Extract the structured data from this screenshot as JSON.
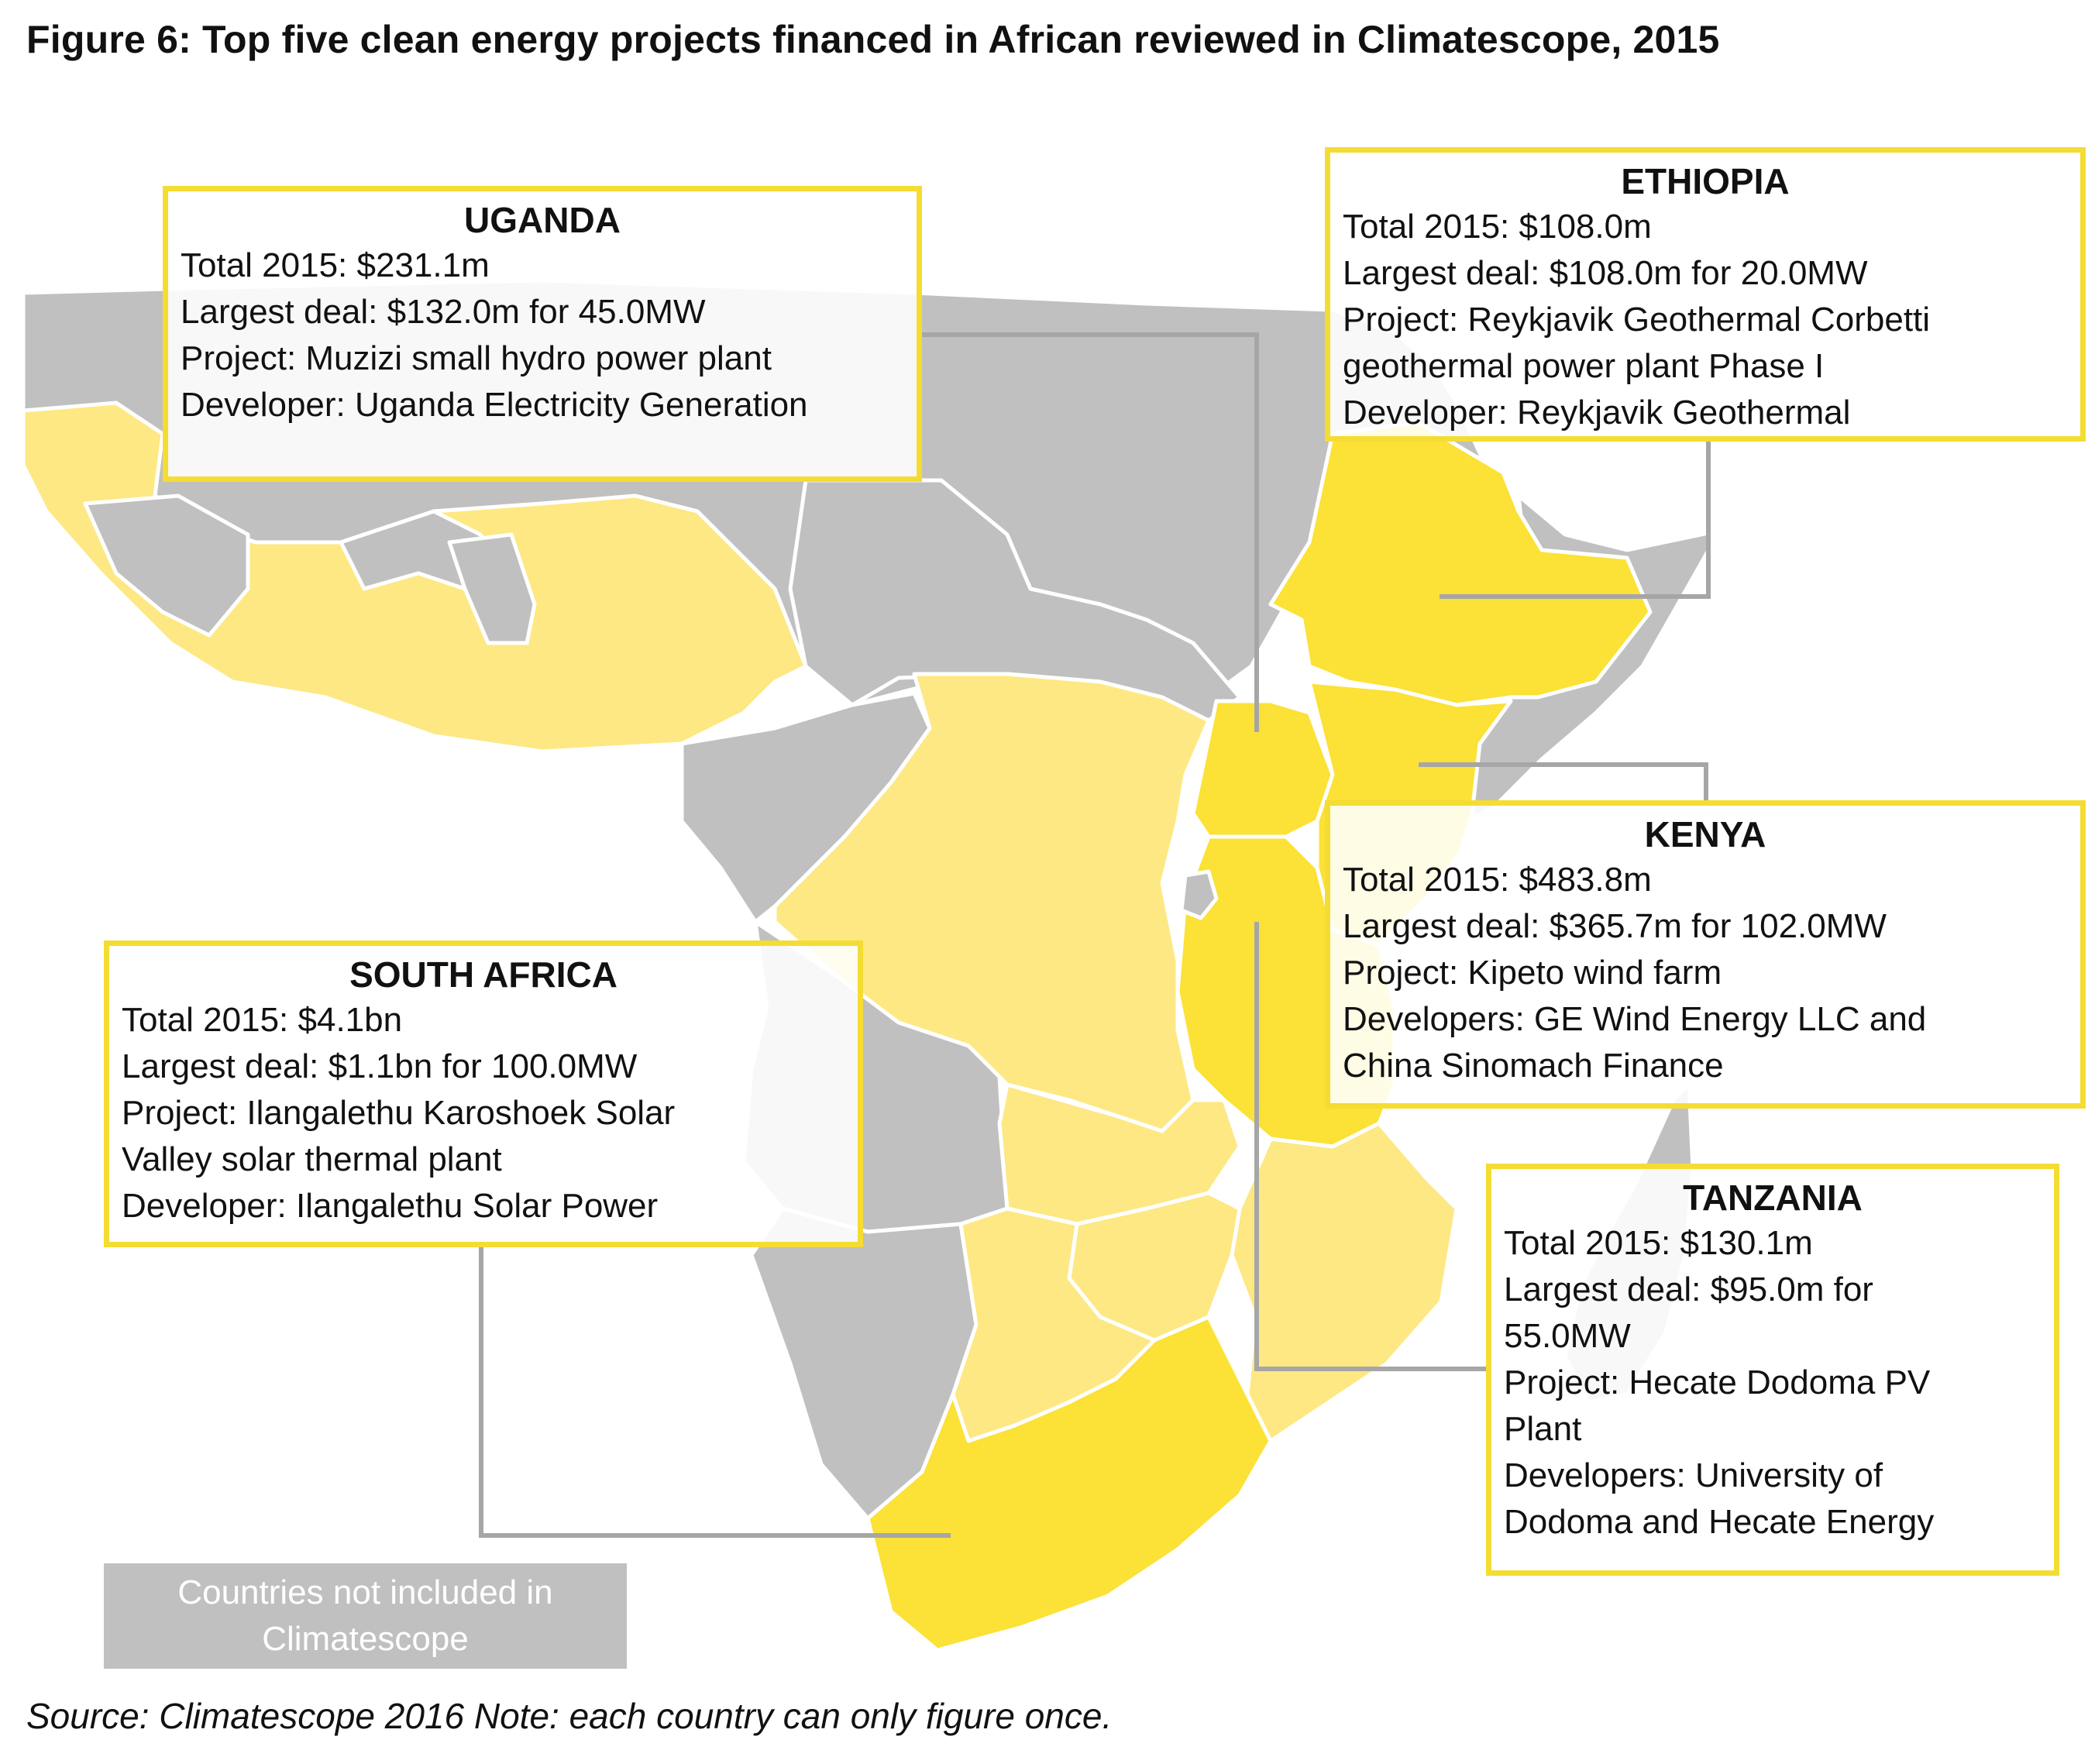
{
  "figure": {
    "title": "Figure 6: Top five clean energy projects financed in African reviewed in Climatescope, 2015",
    "source": "Source: Climatescope 2016 Note: each country can only figure once."
  },
  "legend": {
    "label": "Countries not included in Climatescope"
  },
  "colors": {
    "top_five": "#fce136",
    "climatescope": "#fde883",
    "not_included": "#c0c0c0",
    "border": "#ffffff",
    "leader": "#a6a6a6",
    "box_border": "#f5dc32"
  },
  "callouts": {
    "uganda": {
      "country": "UGANDA",
      "total": "Total 2015: $231.1m",
      "deal": "Largest deal: $132.0m for 45.0MW",
      "project": "Project: Muzizi small hydro power plant",
      "developer": "Developer: Uganda Electricity Generation"
    },
    "ethiopia": {
      "country": "ETHIOPIA",
      "total": "Total 2015: $108.0m",
      "deal": "Largest deal: $108.0m for 20.0MW",
      "project_1": "Project: Reykjavik Geothermal Corbetti",
      "project_2": "geothermal power plant Phase I",
      "developer": "Developer: Reykjavik Geothermal"
    },
    "kenya": {
      "country": "KENYA",
      "total": "Total 2015: $483.8m",
      "deal": "Largest deal: $365.7m for 102.0MW",
      "project": "Project: Kipeto wind farm",
      "developers_1": "Developers: GE Wind Energy LLC and",
      "developers_2": "China Sinomach Finance"
    },
    "south_africa": {
      "country": "SOUTH AFRICA",
      "total": "Total 2015: $4.1bn",
      "deal": "Largest deal: $1.1bn for 100.0MW",
      "project_1": "Project: Ilangalethu Karoshoek Solar",
      "project_2": "Valley solar thermal plant",
      "developer": "Developer: Ilangalethu Solar Power"
    },
    "tanzania": {
      "country": "TANZANIA",
      "total": "Total 2015: $130.1m",
      "deal_1": "Largest deal: $95.0m for",
      "deal_2": "55.0MW",
      "project_1": "Project: Hecate Dodoma PV",
      "project_2": "Plant",
      "developers_1": "Developers: University of",
      "developers_2": "Dodoma and Hecate Energy"
    }
  }
}
